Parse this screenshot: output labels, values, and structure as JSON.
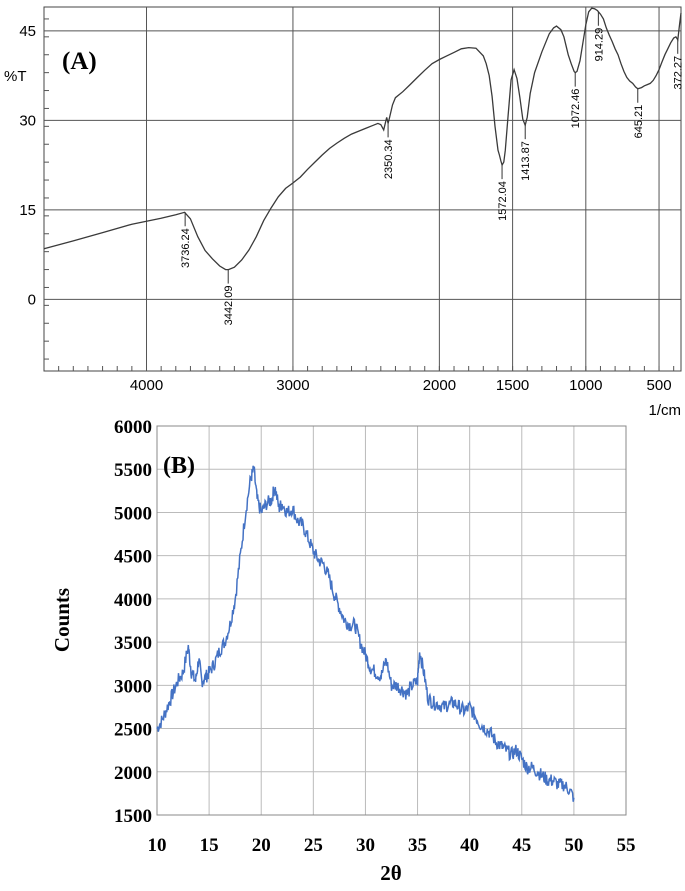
{
  "chart_data": [
    {
      "type": "line",
      "panel_label": "(A)",
      "ylabel": "%T",
      "xunit": "1/cm",
      "xlim": [
        4700,
        350
      ],
      "ylim": [
        -12,
        49
      ],
      "grid": true,
      "x_ticks": [
        4000,
        3000,
        2000,
        1500,
        1000,
        500
      ],
      "y_ticks": [
        45,
        30,
        15,
        0
      ],
      "series": [
        {
          "color": "#3a3a3a",
          "x": [
            4700,
            4500,
            4300,
            4100,
            3900,
            3800,
            3740,
            3700,
            3650,
            3600,
            3550,
            3500,
            3460,
            3440,
            3400,
            3350,
            3300,
            3250,
            3200,
            3150,
            3100,
            3050,
            3000,
            2950,
            2900,
            2850,
            2800,
            2750,
            2700,
            2650,
            2600,
            2550,
            2500,
            2450,
            2420,
            2400,
            2380,
            2360,
            2350,
            2340,
            2320,
            2300,
            2250,
            2200,
            2150,
            2100,
            2050,
            2000,
            1950,
            1900,
            1850,
            1800,
            1750,
            1700,
            1680,
            1660,
            1640,
            1620,
            1600,
            1590,
            1580,
            1572,
            1560,
            1550,
            1530,
            1510,
            1490,
            1470,
            1450,
            1430,
            1414,
            1400,
            1380,
            1350,
            1300,
            1250,
            1220,
            1200,
            1170,
            1150,
            1120,
            1100,
            1080,
            1072,
            1060,
            1040,
            1020,
            1000,
            980,
            960,
            940,
            920,
            914,
            900,
            880,
            860,
            840,
            820,
            800,
            780,
            760,
            740,
            720,
            700,
            680,
            660,
            645,
            620,
            600,
            580,
            560,
            540,
            520,
            500,
            480,
            460,
            440,
            420,
            400,
            385,
            372,
            360,
            350
          ],
          "y": [
            8.5,
            9.8,
            11.2,
            12.6,
            13.6,
            14.2,
            14.6,
            13.5,
            10.5,
            8.2,
            6.8,
            5.6,
            5.0,
            5.0,
            5.4,
            6.6,
            8.3,
            10.5,
            13.2,
            15.3,
            17.2,
            18.6,
            19.5,
            20.5,
            21.8,
            23.0,
            24.2,
            25.3,
            26.2,
            27.0,
            27.7,
            28.2,
            28.7,
            29.2,
            29.5,
            29.3,
            28.4,
            30.5,
            29.5,
            30.5,
            32.6,
            33.8,
            34.8,
            36.0,
            37.2,
            38.4,
            39.5,
            40.2,
            40.8,
            41.4,
            42.0,
            42.2,
            42.1,
            40.8,
            39.5,
            37.5,
            34.0,
            29.0,
            25.0,
            24.2,
            23.2,
            22.5,
            23.0,
            25.0,
            31.0,
            36.8,
            38.5,
            37.0,
            33.8,
            30.2,
            29.2,
            30.5,
            34.5,
            38.0,
            41.5,
            44.5,
            45.5,
            45.8,
            45.2,
            44.0,
            41.0,
            39.5,
            38.2,
            38.0,
            38.2,
            40.0,
            43.0,
            46.0,
            48.2,
            48.8,
            48.7,
            48.4,
            48.2,
            47.8,
            47.0,
            45.5,
            44.3,
            43.2,
            42.0,
            41.0,
            39.5,
            38.2,
            37.2,
            36.6,
            36.2,
            35.6,
            35.3,
            35.5,
            35.8,
            36.0,
            36.2,
            36.7,
            37.5,
            38.5,
            39.8,
            41.0,
            42.0,
            43.0,
            43.8,
            44.0,
            43.5,
            46.0,
            48.0
          ]
        }
      ],
      "annotations": [
        {
          "label": "3736.24",
          "x": 3736.24,
          "y": 14.6
        },
        {
          "label": "3442.09",
          "x": 3442.09,
          "y": 5.0
        },
        {
          "label": "2350.34",
          "x": 2350.34,
          "y": 29.5
        },
        {
          "label": "1572.04",
          "x": 1572.04,
          "y": 22.5
        },
        {
          "label": "1413.87",
          "x": 1413.87,
          "y": 29.2
        },
        {
          "label": "1072.46",
          "x": 1072.46,
          "y": 38.0
        },
        {
          "label": "914.29",
          "x": 914.29,
          "y": 48.2
        },
        {
          "label": "645.21",
          "x": 645.21,
          "y": 35.3
        },
        {
          "label": "372.27",
          "x": 372.27,
          "y": 43.5
        }
      ]
    },
    {
      "type": "line",
      "panel_label": "(B)",
      "xlabel": "2θ",
      "ylabel": "Counts",
      "xlim": [
        10,
        55
      ],
      "ylim": [
        1500,
        6000
      ],
      "grid": true,
      "x_ticks": [
        10,
        15,
        20,
        25,
        30,
        35,
        40,
        45,
        50,
        55
      ],
      "y_ticks": [
        1500,
        2000,
        2500,
        3000,
        3500,
        4000,
        4500,
        5000,
        5500,
        6000
      ],
      "series": [
        {
          "color": "#4472c4",
          "x": [
            10,
            10.5,
            11,
            11.5,
            12,
            12.5,
            13,
            13.3,
            13.7,
            14,
            14.3,
            14.7,
            15,
            15.5,
            16,
            16.5,
            17,
            17.5,
            18,
            18.5,
            19,
            19.3,
            19.6,
            20,
            20.5,
            21,
            21.3,
            21.7,
            22,
            22.5,
            23,
            23.5,
            24,
            24.5,
            25,
            25.5,
            26,
            26.5,
            27,
            27.5,
            28,
            28.5,
            29,
            29.5,
            30,
            30.5,
            31,
            31.5,
            32,
            32.5,
            33,
            33.5,
            34,
            34.5,
            35,
            35.2,
            35.6,
            36,
            36.5,
            37,
            37.5,
            38,
            38.5,
            39,
            39.5,
            40,
            40.5,
            41,
            41.5,
            42,
            42.5,
            43,
            43.5,
            44,
            44.5,
            45,
            45.5,
            46,
            46.5,
            47,
            47.5,
            48,
            48.5,
            49,
            49.5,
            50
          ],
          "y": [
            2500,
            2600,
            2750,
            2900,
            3050,
            3150,
            3450,
            3150,
            3050,
            3300,
            3050,
            3100,
            3150,
            3250,
            3400,
            3500,
            3700,
            4000,
            4500,
            5000,
            5400,
            5500,
            5150,
            5000,
            5100,
            5150,
            5300,
            5050,
            5100,
            5000,
            5050,
            4900,
            4850,
            4700,
            4550,
            4450,
            4400,
            4250,
            4050,
            3900,
            3750,
            3700,
            3700,
            3500,
            3350,
            3200,
            3150,
            3100,
            3300,
            3000,
            3000,
            2950,
            2900,
            3000,
            3050,
            3400,
            3150,
            2850,
            2800,
            2780,
            2750,
            2780,
            2800,
            2750,
            2700,
            2750,
            2650,
            2550,
            2500,
            2450,
            2350,
            2300,
            2250,
            2200,
            2250,
            2150,
            2050,
            2050,
            2000,
            1950,
            1900,
            1900,
            1850,
            1850,
            1800,
            1700
          ]
        }
      ]
    }
  ]
}
